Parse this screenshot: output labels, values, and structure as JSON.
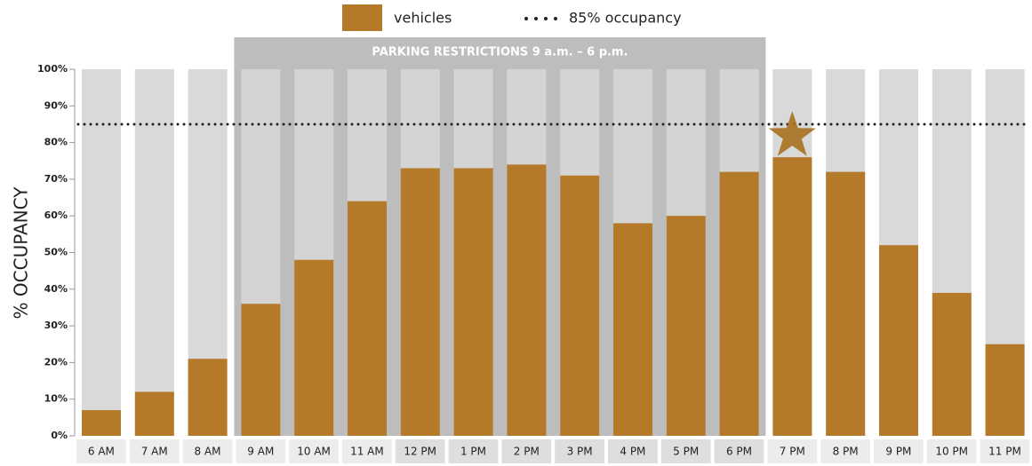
{
  "chart_data": {
    "type": "bar",
    "categories": [
      "6 AM",
      "7 AM",
      "8 AM",
      "9 AM",
      "10 AM",
      "11 AM",
      "12 PM",
      "1 PM",
      "2 PM",
      "3 PM",
      "4 PM",
      "5 PM",
      "6 PM",
      "7 PM",
      "8 PM",
      "9 PM",
      "10 PM",
      "11 PM"
    ],
    "series": [
      {
        "name": "vehicles",
        "color": "#b5792a",
        "values": [
          7,
          12,
          21,
          36,
          48,
          64,
          73,
          73,
          74,
          71,
          58,
          60,
          72,
          76,
          72,
          52,
          39,
          25
        ]
      }
    ],
    "ylabel": "% OCCUPANCY",
    "ylim": [
      0,
      100
    ],
    "yticks": [
      {
        "value": 0,
        "label": "0%"
      },
      {
        "value": 10,
        "label": "10%"
      },
      {
        "value": 20,
        "label": "20%"
      },
      {
        "value": 30,
        "label": "30%"
      },
      {
        "value": 40,
        "label": "40%"
      },
      {
        "value": 50,
        "label": "50%"
      },
      {
        "value": 60,
        "label": "60%"
      },
      {
        "value": 70,
        "label": "70%"
      },
      {
        "value": 80,
        "label": "80%"
      },
      {
        "value": 90,
        "label": "90%"
      },
      {
        "value": 100,
        "label": "100%"
      }
    ],
    "reference_line": {
      "name": "85% occupancy",
      "value": 85
    },
    "shaded_range": {
      "label": "PARKING RESTRICTIONS 9 a.m. – 6 p.m.",
      "from": "9 AM",
      "to": "6 PM"
    },
    "highlight": "7 PM",
    "legend": "top"
  }
}
